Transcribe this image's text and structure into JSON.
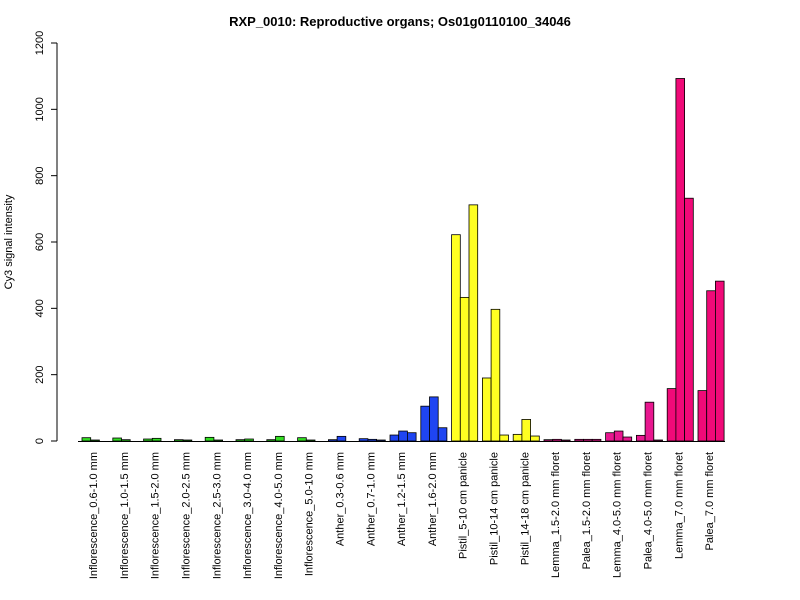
{
  "chart_data": {
    "type": "bar",
    "title": "RXP_0010: Reproductive organs; Os01g0110100_34046",
    "xlabel": "",
    "ylabel": "Cy3 signal intensity",
    "ylim": [
      0,
      1200
    ],
    "yticks": [
      0,
      200,
      400,
      600,
      800,
      1000,
      1200
    ],
    "grid": false,
    "categories": [
      "Inflorescence_0.6-1.0 mm",
      "Inflorescence_1.0-1.5 mm",
      "Inflorescence_1.5-2.0 mm",
      "Inflorescence_2.0-2.5 mm",
      "Inflorescence_2.5-3.0 mm",
      "Inflorescence_3.0-4.0 mm",
      "Inflorescence_4.0-5.0 mm",
      "Inflorescence_5.0-10 mm",
      "Anther_0.3-0.6 mm",
      "Anther_0.7-1.0 mm",
      "Anther_1.2-1.5 mm",
      "Anther_1.6-2.0 mm",
      "Pistil_5-10 cm panicle",
      "Pistil_10-14 cm panicle",
      "Pistil_14-18 cm panicle",
      "Lemma_1.5-2.0 mm floret",
      "Palea_1.5-2.0 mm floret",
      "Lemma_4.0-5.0 mm floret",
      "Palea_4.0-5.0 mm floret",
      "Lemma_7.0 mm floret",
      "Palea_7.0 mm floret"
    ],
    "colors": [
      "#33dd22",
      "#33dd22",
      "#33dd22",
      "#33dd22",
      "#33dd22",
      "#33dd22",
      "#33dd22",
      "#33dd22",
      "#1f45f2",
      "#1f45f2",
      "#1f45f2",
      "#1f45f2",
      "#ffff22",
      "#ffff22",
      "#ffff22",
      "#e8178f",
      "#e8178f",
      "#e8178f",
      "#e8178f",
      "#f00a78",
      "#f00a78"
    ],
    "values": [
      [
        10,
        3,
        0
      ],
      [
        9,
        4,
        0
      ],
      [
        6,
        8,
        0
      ],
      [
        4,
        3,
        0
      ],
      [
        11,
        3,
        0
      ],
      [
        4,
        6,
        0
      ],
      [
        4,
        14,
        0
      ],
      [
        10,
        3,
        0
      ],
      [
        4,
        14,
        0
      ],
      [
        7,
        5,
        3
      ],
      [
        18,
        30,
        25
      ],
      [
        105,
        133,
        40
      ],
      [
        622,
        433,
        712
      ],
      [
        190,
        397,
        18
      ],
      [
        20,
        65,
        15
      ],
      [
        4,
        5,
        3
      ],
      [
        5,
        5,
        5
      ],
      [
        25,
        30,
        12
      ],
      [
        17,
        117,
        3
      ],
      [
        158,
        1093,
        732
      ],
      [
        152,
        453,
        482
      ]
    ]
  }
}
